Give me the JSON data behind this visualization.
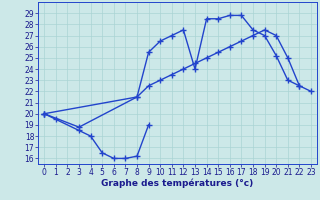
{
  "bg_color": "#cce8e8",
  "grid_color": "#aad4d4",
  "line_color": "#2244cc",
  "xlabel": "Graphe des températures (°c)",
  "xlim": [
    -0.5,
    23.5
  ],
  "ylim": [
    15.5,
    30.0
  ],
  "yticks": [
    16,
    17,
    18,
    19,
    20,
    21,
    22,
    23,
    24,
    25,
    26,
    27,
    28,
    29
  ],
  "xticks": [
    0,
    1,
    2,
    3,
    4,
    5,
    6,
    7,
    8,
    9,
    10,
    11,
    12,
    13,
    14,
    15,
    16,
    17,
    18,
    19,
    20,
    21,
    22,
    23
  ],
  "tick_fontsize": 5.5,
  "xlabel_fontsize": 6.5,
  "s1_x": [
    0,
    1,
    3,
    4,
    5,
    6,
    7,
    8,
    9
  ],
  "s1_y": [
    20.0,
    19.5,
    18.5,
    18.0,
    16.5,
    16.0,
    16.0,
    16.2,
    19.0
  ],
  "s2_x": [
    0,
    3,
    8,
    9,
    10,
    11,
    12,
    13,
    14,
    15,
    16,
    17,
    18,
    19,
    20,
    21,
    22
  ],
  "s2_y": [
    20.0,
    18.8,
    21.5,
    22.5,
    23.0,
    23.5,
    24.0,
    24.5,
    25.0,
    25.5,
    26.0,
    26.5,
    27.0,
    27.5,
    27.0,
    25.0,
    22.5
  ],
  "s3_x": [
    0,
    8,
    9,
    10,
    11,
    12,
    13,
    14,
    15,
    16,
    17,
    18,
    19,
    20,
    21,
    22,
    23
  ],
  "s3_y": [
    20.0,
    21.5,
    25.5,
    26.5,
    27.0,
    27.5,
    24.0,
    28.5,
    28.5,
    28.8,
    28.8,
    27.5,
    27.0,
    25.2,
    23.0,
    22.5,
    22.0
  ]
}
